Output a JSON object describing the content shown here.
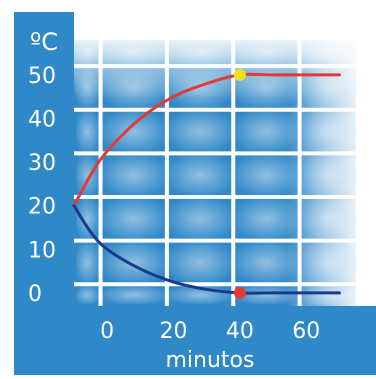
{
  "chart_data": {
    "type": "line",
    "ylabel": "ºC",
    "xlabel": "minutos",
    "x_ticks": [
      0,
      20,
      40,
      60
    ],
    "y_ticks": [
      0,
      10,
      20,
      30,
      40,
      50
    ],
    "xlim": [
      -10,
      75
    ],
    "ylim": [
      -3,
      58
    ],
    "grid": true,
    "series": [
      {
        "color": "#e53935",
        "marker_color": "#f2e21a",
        "x": [
          -10,
          -5,
          0,
          10,
          20,
          30,
          40,
          50,
          60,
          70
        ],
        "y": [
          20,
          27,
          32.5,
          40,
          45,
          48,
          50,
          50,
          50,
          50
        ],
        "marker": {
          "x": 40,
          "y": 50
        }
      },
      {
        "color": "#1a3a8c",
        "marker_color": "#e53935",
        "x": [
          -10,
          -5,
          0,
          10,
          20,
          30,
          40,
          50,
          60,
          70
        ],
        "y": [
          20,
          14,
          10,
          5.5,
          2.5,
          0.8,
          0,
          0,
          0,
          0
        ],
        "marker": {
          "x": 40,
          "y": 0
        }
      }
    ]
  },
  "colors": {
    "background": "#2f88c8",
    "grid": "#ffffff",
    "text": "#ffffff"
  }
}
